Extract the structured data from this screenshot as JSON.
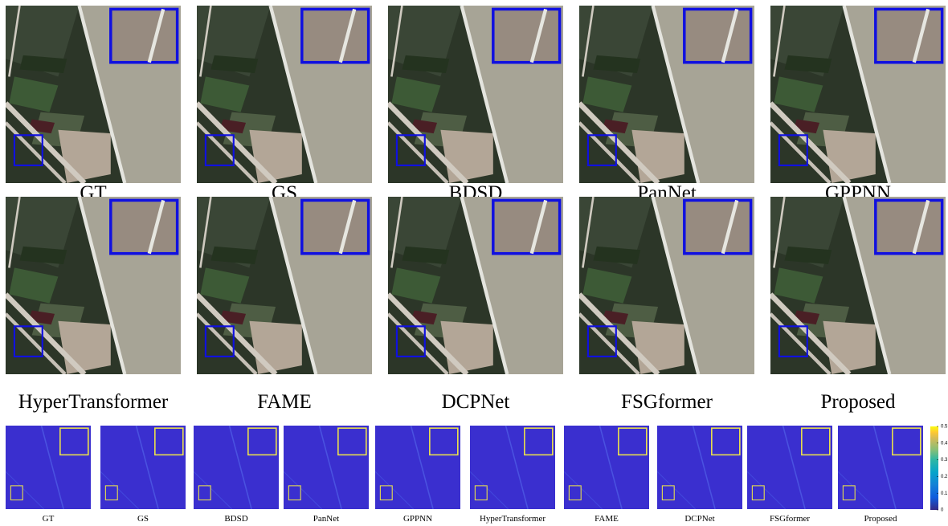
{
  "rows": [
    {
      "labels": [
        "GT",
        "GS",
        "BDSD",
        "PanNet",
        "GPPNN"
      ]
    },
    {
      "labels": [
        "HyperTransformer",
        "FAME",
        "DCPNet",
        "FSGformer",
        "Proposed"
      ]
    },
    {
      "labels": [
        "GT",
        "GS",
        "BDSD",
        "PanNet",
        "GPPNN",
        "HyperTransformer",
        "FAME",
        "DCPNet",
        "FSGformer",
        "Proposed"
      ]
    }
  ],
  "colorbar": {
    "lim": [
      0,
      0.5
    ],
    "ticks": [
      0,
      0.1,
      0.2,
      0.3,
      0.4,
      0.5
    ]
  }
}
